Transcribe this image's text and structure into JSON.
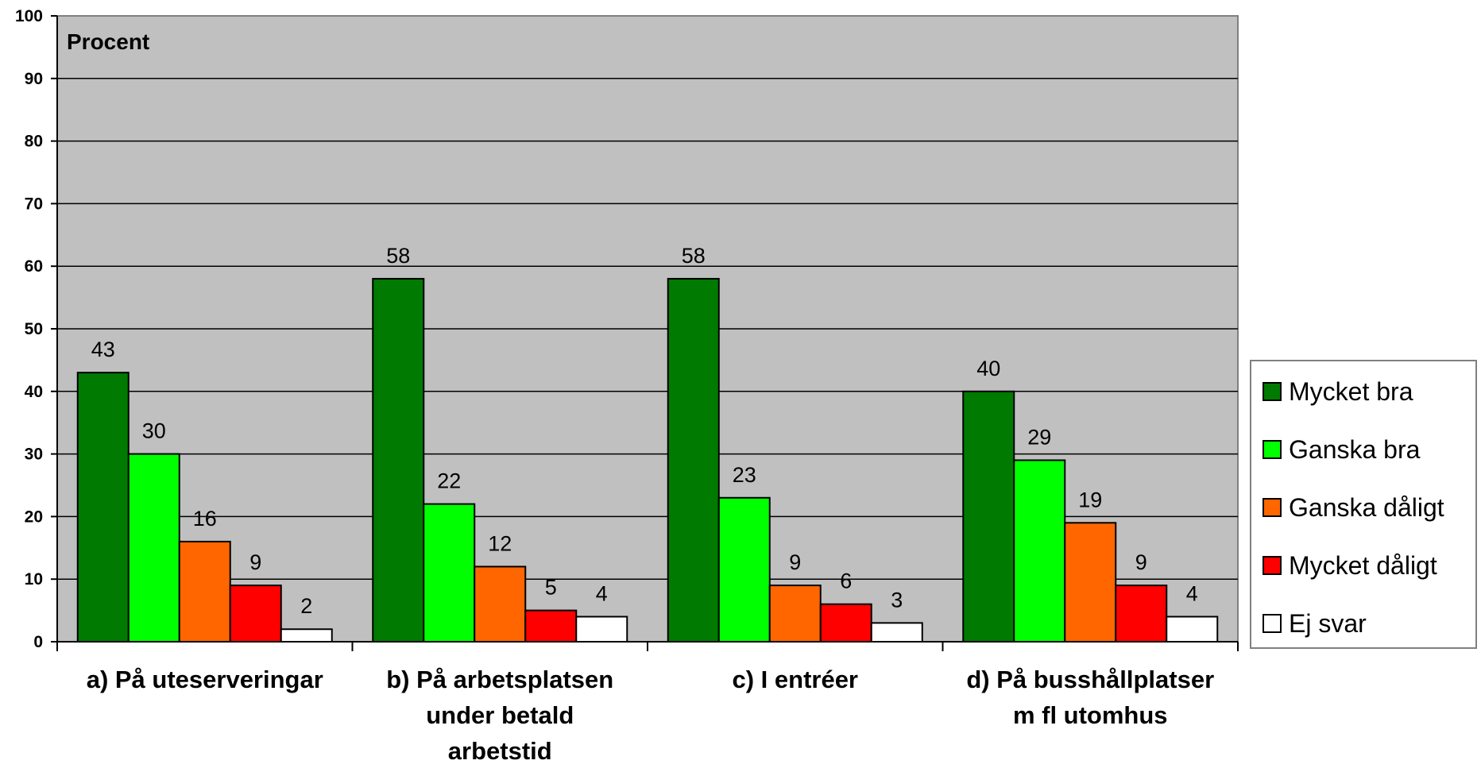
{
  "chart_data": {
    "type": "bar",
    "unit_label": "Procent",
    "ylim": [
      0,
      100
    ],
    "yticks": [
      0,
      10,
      20,
      30,
      40,
      50,
      60,
      70,
      80,
      90,
      100
    ],
    "grid": true,
    "legend_position": "right",
    "categories": [
      [
        "a) På uteserveringar"
      ],
      [
        "b) På arbetsplatsen",
        "under betald",
        "arbetstid"
      ],
      [
        "c) I entréer"
      ],
      [
        "d) På busshållplatser",
        "m fl utomhus"
      ]
    ],
    "series": [
      {
        "name": "Mycket bra",
        "color": "#007A00",
        "values": [
          43,
          58,
          58,
          40
        ]
      },
      {
        "name": "Ganska bra",
        "color": "#00FF00",
        "values": [
          30,
          22,
          23,
          29
        ]
      },
      {
        "name": "Ganska dåligt",
        "color": "#FF6600",
        "values": [
          16,
          12,
          9,
          19
        ]
      },
      {
        "name": "Mycket dåligt",
        "color": "#FF0000",
        "values": [
          9,
          5,
          6,
          9
        ]
      },
      {
        "name": "Ej svar",
        "color": "#FFFFFF",
        "values": [
          2,
          4,
          3,
          4
        ]
      }
    ],
    "plot_background": "#C0C0C0"
  }
}
